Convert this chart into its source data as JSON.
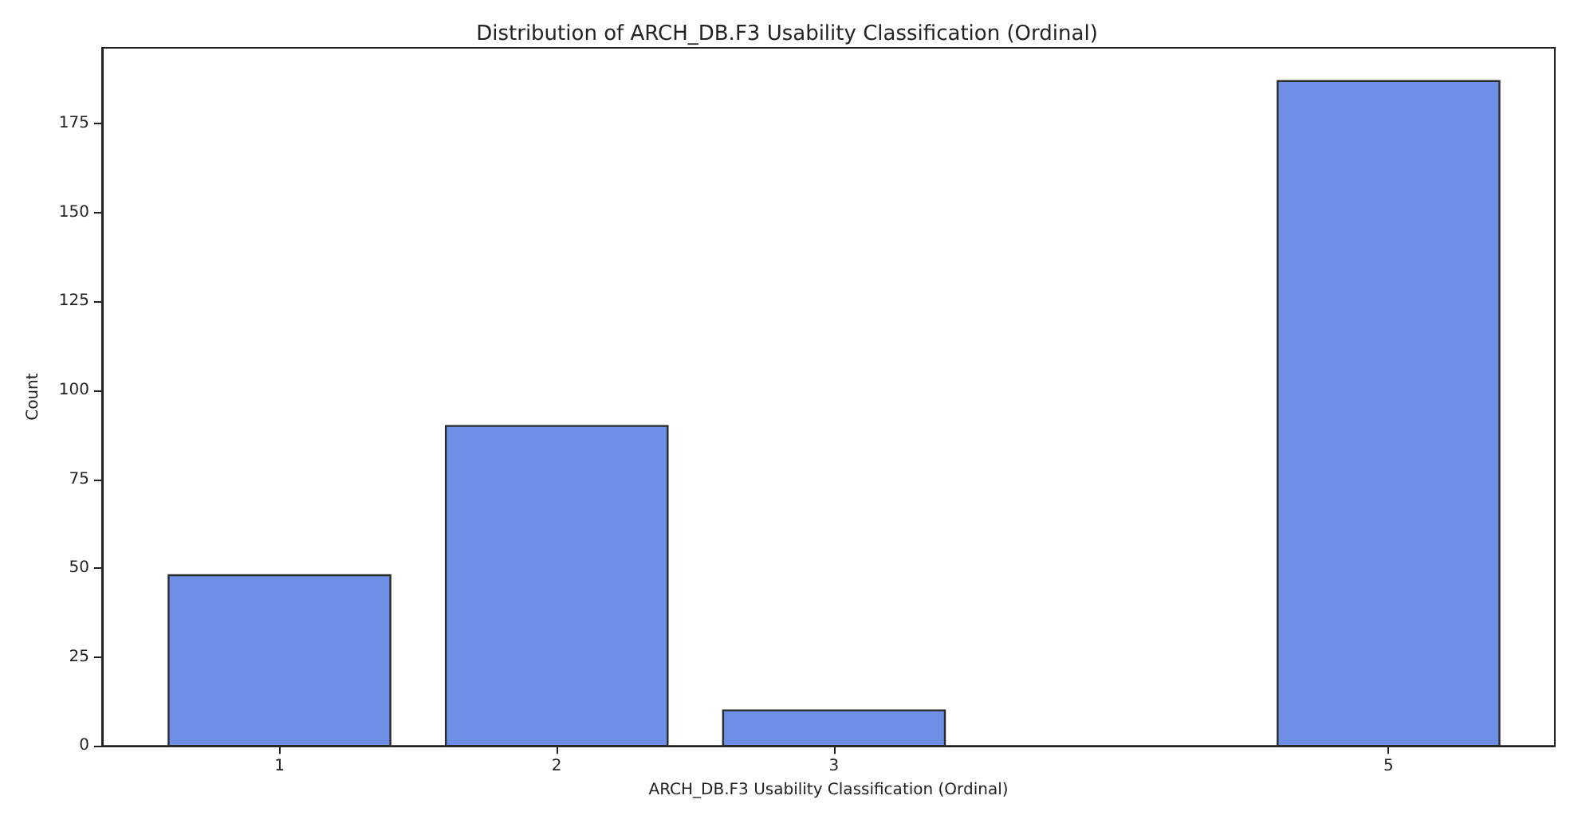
{
  "chart_data": {
    "type": "bar",
    "title": "Distribution of ARCH_DB.F3 Usability Classification (Ordinal)",
    "xlabel": "ARCH_DB.F3 Usability Classification (Ordinal)",
    "ylabel": "Count",
    "x": [
      1,
      2,
      3,
      5
    ],
    "values": [
      48,
      90,
      10,
      187
    ],
    "color": "#6d8fe5",
    "xlim": [
      0.36,
      5.6
    ],
    "xticks": [
      1,
      2,
      3,
      5
    ],
    "ylim": [
      0,
      196.35
    ],
    "yticks": [
      0,
      25,
      50,
      75,
      100,
      125,
      150,
      175
    ],
    "grid": false
  }
}
